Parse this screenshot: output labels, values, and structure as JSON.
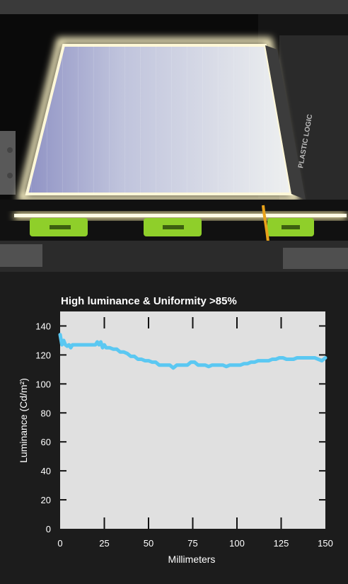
{
  "photo": {
    "logo_text": "PLASTIC LOGIC",
    "panel_color": "#dfe3ea",
    "glow_color": "#fff6c8",
    "connector_color": "#8fcf2a"
  },
  "chart_data": {
    "type": "line",
    "title": "High luminance & Uniformity >85%",
    "xlabel": "Millimeters",
    "ylabel": "Luminance (Cd/m²)",
    "xlim": [
      0,
      150
    ],
    "ylim": [
      0,
      150
    ],
    "xticks": [
      0,
      25,
      50,
      75,
      100,
      125,
      150
    ],
    "yticks": [
      0,
      20,
      40,
      60,
      80,
      100,
      120,
      140
    ],
    "grid": false,
    "series": [
      {
        "color": "#5bc8f2",
        "x": [
          0,
          1,
          2,
          3,
          4,
          5,
          6,
          7,
          8,
          10,
          12,
          14,
          16,
          18,
          20,
          21,
          22,
          23,
          24,
          25,
          26,
          28,
          30,
          32,
          34,
          36,
          38,
          40,
          42,
          44,
          46,
          48,
          50,
          52,
          54,
          56,
          58,
          60,
          62,
          64,
          66,
          68,
          70,
          72,
          74,
          76,
          78,
          80,
          82,
          84,
          86,
          88,
          90,
          92,
          94,
          96,
          98,
          100,
          102,
          104,
          106,
          108,
          110,
          112,
          114,
          116,
          118,
          120,
          122,
          124,
          126,
          128,
          130,
          132,
          134,
          136,
          138,
          140,
          142,
          144,
          146,
          148,
          150
        ],
        "y": [
          134,
          127,
          130,
          127,
          126,
          127,
          125,
          127,
          127,
          127,
          127,
          127,
          127,
          127,
          127,
          129,
          127,
          129,
          125,
          127,
          125,
          125,
          124,
          124,
          122,
          122,
          121,
          119,
          119,
          117,
          117,
          116,
          116,
          115,
          115,
          113,
          113,
          113,
          113,
          111,
          113,
          113,
          113,
          113,
          115,
          115,
          113,
          113,
          113,
          112,
          113,
          113,
          113,
          113,
          112,
          113,
          113,
          113,
          113,
          114,
          114,
          115,
          115,
          116,
          116,
          116,
          116,
          117,
          117,
          118,
          118,
          117,
          117,
          117,
          118,
          118,
          118,
          118,
          118,
          118,
          117,
          116,
          118
        ]
      }
    ]
  }
}
